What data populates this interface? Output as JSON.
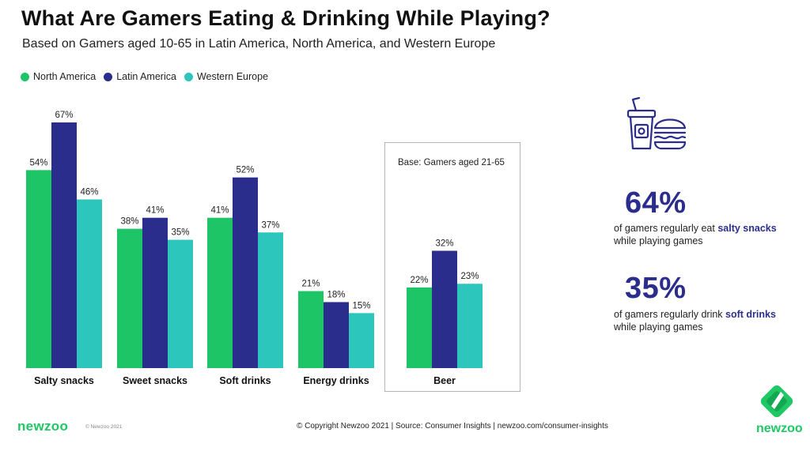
{
  "header": {
    "title": "What Are Gamers Eating & Drinking While Playing?",
    "subtitle": "Based on Gamers aged 10-65 in Latin America, North America, and Western Europe"
  },
  "legend": [
    {
      "name": "North America",
      "color": "#1dc567"
    },
    {
      "name": "Latin America",
      "color": "#2b2d8d"
    },
    {
      "name": "Western Europe",
      "color": "#2dc6bd"
    }
  ],
  "chart_data": {
    "type": "bar",
    "categories": [
      "Salty snacks",
      "Sweet snacks",
      "Soft drinks",
      "Energy drinks",
      "Beer"
    ],
    "series": [
      {
        "name": "North America",
        "values": [
          54,
          38,
          41,
          21,
          22
        ],
        "labels": [
          "54%",
          "38%",
          "41%",
          "21%",
          "22%"
        ]
      },
      {
        "name": "Latin America",
        "values": [
          67,
          41,
          52,
          18,
          32
        ],
        "labels": [
          "67%",
          "41%",
          "52%",
          "18%",
          "32%"
        ]
      },
      {
        "name": "Western Europe",
        "values": [
          46,
          35,
          37,
          15,
          23
        ],
        "labels": [
          "46%",
          "35%",
          "37%",
          "15%",
          "23%"
        ]
      }
    ],
    "ylim": [
      0,
      70
    ],
    "grid": false,
    "legend_position": "top-left",
    "annotation": "Base: Gamers aged 21-65"
  },
  "stats": [
    {
      "value": "64%",
      "text_before": "of gamers regularly eat ",
      "highlight": "salty snacks",
      "text_after": " while playing games"
    },
    {
      "value": "35%",
      "text_before": "of gamers regularly drink ",
      "highlight": "soft drinks",
      "text_after": " while playing games"
    }
  ],
  "icon": {
    "name": "soda-burger-icon",
    "color": "#2b2d8d"
  },
  "footer": {
    "logo": "newzoo",
    "small": "© Newzoo 2021",
    "copyright": "© Copyright Newzoo 2021 | Source: Consumer Insights | newzoo.com/consumer-insights",
    "brand_word": "newzoo",
    "brand_color": "#1fc765"
  }
}
